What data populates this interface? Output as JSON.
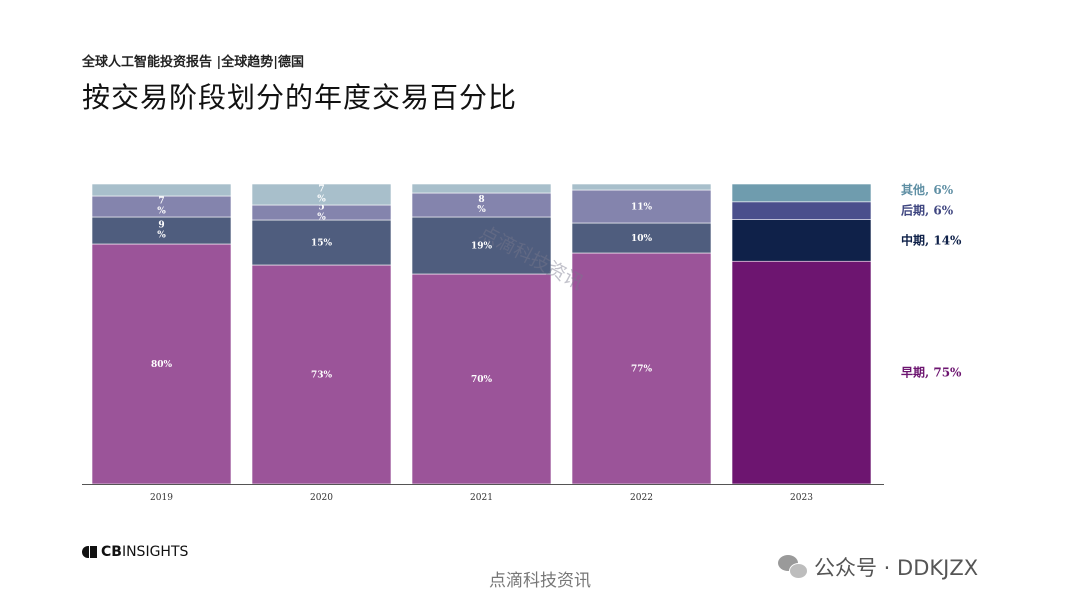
{
  "header": {
    "subtitle": "全球人工智能投资报告 |全球趋势|德国",
    "title": "按交易阶段划分的年度交易百分比"
  },
  "colors": {
    "early": "#9b5499",
    "mid": "#4f5d7e",
    "late": "#8484ad",
    "other": "#a8bfcb",
    "early_2023": "#6d1570",
    "mid_2023": "#0f2149",
    "late_2023": "#4a4f8c",
    "other_2023": "#6f9cae",
    "legend_other": "#5f8fa4",
    "legend_late": "#3f4680",
    "legend_mid": "#0f2149",
    "legend_early": "#6d1570"
  },
  "chart_data": {
    "type": "bar",
    "stacked": true,
    "normalized": true,
    "categories": [
      "2019",
      "2020",
      "2021",
      "2022",
      "2023"
    ],
    "ylim": [
      0,
      100
    ],
    "series": [
      {
        "name": "早期",
        "values": [
          80,
          73,
          70,
          77,
          75
        ],
        "labels": [
          "80%",
          "73%",
          "70%",
          "77%",
          ""
        ]
      },
      {
        "name": "中期",
        "values": [
          9,
          15,
          19,
          10,
          14
        ],
        "labels": [
          "9\n%",
          "15%",
          "19%",
          "10%",
          ""
        ]
      },
      {
        "name": "后期",
        "values": [
          7,
          5,
          8,
          11,
          6
        ],
        "labels": [
          "7\n%",
          "5\n%",
          "8\n%",
          "11%",
          ""
        ]
      },
      {
        "name": "其他",
        "values": [
          4,
          7,
          3,
          2,
          6
        ],
        "labels": [
          "",
          "7\n%",
          "",
          "",
          ""
        ]
      }
    ],
    "legend": [
      {
        "text": "其他, 6%",
        "series": "其他"
      },
      {
        "text": "后期, 6%",
        "series": "后期"
      },
      {
        "text": "中期, 14%",
        "series": "中期"
      },
      {
        "text": "早期, 75%",
        "series": "早期"
      }
    ],
    "legend_position": "right",
    "grid": false
  },
  "watermarks": {
    "overlay": "点滴科技资讯",
    "footer": "点滴科技资讯",
    "wechat": "公众号 · DDKJZX"
  },
  "logo": {
    "brand": "CB",
    "rest": "INSIGHTS"
  }
}
